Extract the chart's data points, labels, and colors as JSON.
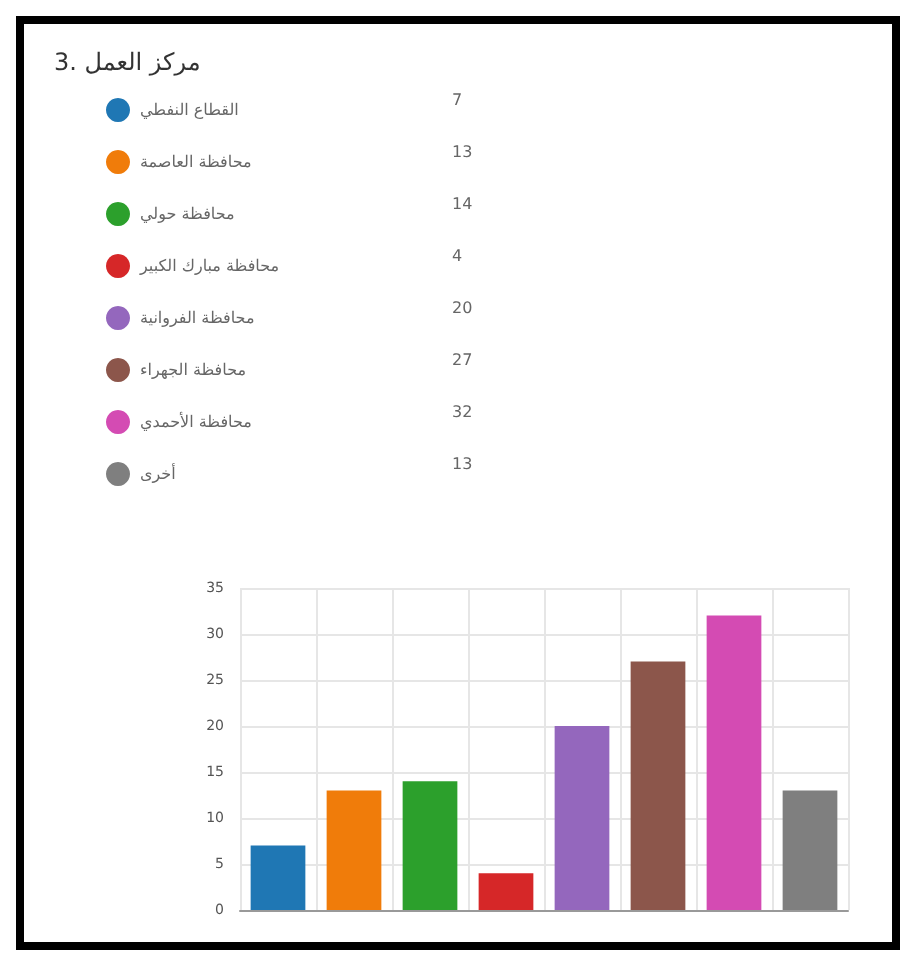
{
  "chart_data": {
    "type": "bar",
    "title": "3. مركز العمل",
    "stacked": true,
    "categories": [
      null,
      null,
      null,
      null,
      null,
      null,
      null,
      null
    ],
    "series": [
      {
        "name": "القطاع النفطي",
        "color": "#1f77b4",
        "values": [
          7,
          null,
          null,
          null,
          null,
          null,
          null,
          null
        ]
      },
      {
        "name": "محافظة العاصمة",
        "color": "#f07c0a",
        "values": [
          null,
          13,
          null,
          null,
          null,
          null,
          null,
          null
        ]
      },
      {
        "name": "محافظة حولي",
        "color": "#2ca02c",
        "values": [
          null,
          null,
          14,
          null,
          null,
          null,
          null,
          null
        ]
      },
      {
        "name": "محافظة مبارك الكبير",
        "color": "#d62728",
        "values": [
          null,
          null,
          null,
          4,
          null,
          null,
          null,
          null
        ]
      },
      {
        "name": "محافظة الفروانية",
        "color": "#9467bd",
        "values": [
          null,
          null,
          null,
          null,
          20,
          null,
          null,
          null
        ]
      },
      {
        "name": "محافظة الجهراء",
        "color": "#8c564b",
        "values": [
          null,
          null,
          null,
          null,
          null,
          27,
          null,
          null
        ]
      },
      {
        "name": "محافظة الأحمدي",
        "color": "#d44bb3",
        "values": [
          null,
          null,
          null,
          null,
          null,
          null,
          32,
          null
        ]
      },
      {
        "name": "أخرى",
        "color": "#7f7f7f",
        "values": [
          null,
          null,
          null,
          null,
          null,
          null,
          null,
          13
        ]
      }
    ],
    "ylim": [
      0,
      35
    ],
    "yticks": [
      0,
      5,
      10,
      15,
      20,
      25,
      30,
      35
    ],
    "annotations": [
      "7",
      "13",
      "14",
      "4",
      "20",
      "27",
      "32",
      "13"
    ],
    "grid": true,
    "legend": "top",
    "tick_labels": "y"
  }
}
